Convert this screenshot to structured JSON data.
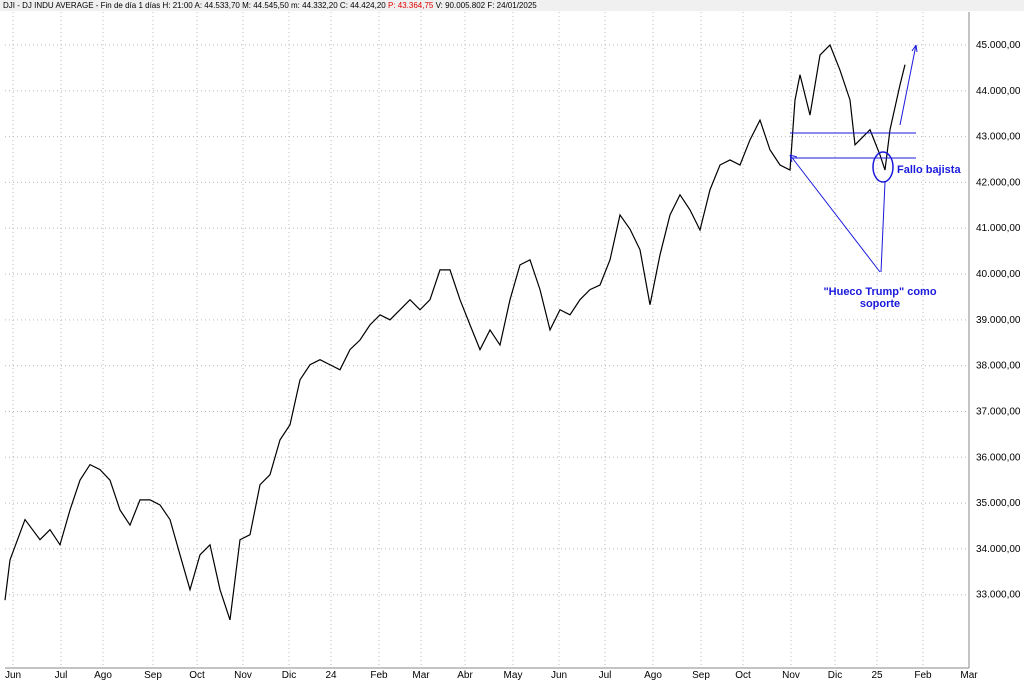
{
  "chart_data": {
    "type": "line",
    "header": {
      "title": "DJI - DJ INDU AVERAGE - Fin de día 1 días",
      "stats": "H: 21:00  A: 44.533,70  M: 44.545,50  m: 44.332,20  C: 44.424,20",
      "previous": "P: 43.364,75",
      "rest": "V: 90.005.802  F: 24/01/2025"
    },
    "x": [
      0,
      2.5,
      10,
      17.5,
      22.5,
      27.5,
      32.5,
      37.5,
      42.5,
      47.5,
      52.5,
      57.5,
      62.5,
      67.5,
      72.5,
      77.5,
      82.5,
      87.5,
      92.5,
      97.5,
      102.5,
      107.5,
      112.5,
      117.5,
      122.5,
      127.5,
      132.5,
      137.5,
      142.5,
      147.5,
      152.5,
      157.5,
      162.5,
      167.5,
      172.5,
      177.5,
      182.5,
      187.5,
      192.5,
      197.5,
      202.5,
      207.5,
      212.5,
      217.5,
      222.5,
      227.5,
      232.5,
      237.5,
      242.5,
      247.5,
      252.5,
      257.5,
      262.5,
      267.5,
      272.5,
      277.5,
      282.5,
      287.5,
      292.5,
      297.5,
      302.5,
      307.5,
      312.5,
      317.5,
      322.5,
      327.5,
      332.5,
      337.5,
      342.5,
      347.5,
      352.5,
      357.5,
      362.5,
      367.5,
      372.5,
      377.5,
      382.5,
      387.5,
      392.5,
      395,
      397.5,
      402.5,
      407.5,
      412.5,
      417.5,
      422.5,
      425,
      427.5,
      432.5,
      437.5,
      440,
      442.5,
      447.5,
      450
    ],
    "series": [
      {
        "name": "DJI",
        "color": "#000000",
        "values": [
          32880,
          33760,
          34640,
          34200,
          34420,
          34090,
          34850,
          35500,
          35840,
          35730,
          35500,
          34850,
          34520,
          35070,
          35070,
          34960,
          34640,
          33870,
          33110,
          33870,
          34090,
          33110,
          32450,
          34200,
          34310,
          35400,
          35620,
          36380,
          36710,
          37690,
          38020,
          38130,
          38020,
          37910,
          38350,
          38560,
          38890,
          39110,
          39000,
          39220,
          39440,
          39220,
          39440,
          40090,
          40090,
          39440,
          38890,
          38350,
          38780,
          38450,
          39440,
          40200,
          40310,
          39660,
          38780,
          39220,
          39110,
          39440,
          39660,
          39760,
          40310,
          41290,
          40980,
          40530,
          39330,
          40420,
          41290,
          41730,
          41400,
          40960,
          41840,
          42380,
          42490,
          42380,
          42930,
          43360,
          42710,
          42380,
          42270,
          43800,
          44350,
          43470,
          44780,
          45000,
          44450,
          43800,
          42820,
          42930,
          43150,
          42600,
          42270,
          43150,
          44130,
          44570
        ]
      }
    ],
    "xlim": [
      0,
      482
    ],
    "xticks": [
      {
        "value": 4,
        "label": "Jun"
      },
      {
        "value": 28,
        "label": "Jul"
      },
      {
        "value": 49,
        "label": "Ago"
      },
      {
        "value": 74,
        "label": "Sep"
      },
      {
        "value": 96,
        "label": "Oct"
      },
      {
        "value": 119,
        "label": "Nov"
      },
      {
        "value": 142,
        "label": "Dic"
      },
      {
        "value": 163,
        "label": "24"
      },
      {
        "value": 187,
        "label": "Feb"
      },
      {
        "value": 208,
        "label": "Mar"
      },
      {
        "value": 230,
        "label": "Abr"
      },
      {
        "value": 254,
        "label": "May"
      },
      {
        "value": 277,
        "label": "Jun"
      },
      {
        "value": 300,
        "label": "Jul"
      },
      {
        "value": 324,
        "label": "Ago"
      },
      {
        "value": 348,
        "label": "Sep"
      },
      {
        "value": 369,
        "label": "Oct"
      },
      {
        "value": 393,
        "label": "Nov"
      },
      {
        "value": 415,
        "label": "Dic"
      },
      {
        "value": 436,
        "label": "25"
      },
      {
        "value": 459,
        "label": "Feb"
      },
      {
        "value": 482,
        "label": "Mar"
      }
    ],
    "ylim": [
      31400,
      45720
    ],
    "yticks": [
      {
        "value": 33000,
        "label": "33.000,00"
      },
      {
        "value": 34000,
        "label": "34.000,00"
      },
      {
        "value": 35000,
        "label": "35.000,00"
      },
      {
        "value": 36000,
        "label": "36.000,00"
      },
      {
        "value": 37000,
        "label": "37.000,00"
      },
      {
        "value": 38000,
        "label": "38.000,00"
      },
      {
        "value": 39000,
        "label": "39.000,00"
      },
      {
        "value": 40000,
        "label": "40.000,00"
      },
      {
        "value": 41000,
        "label": "41.000,00"
      },
      {
        "value": 42000,
        "label": "42.000,00"
      },
      {
        "value": 43000,
        "label": "43.000,00"
      },
      {
        "value": 44000,
        "label": "44.000,00"
      },
      {
        "value": 45000,
        "label": "45.000,00"
      }
    ],
    "grid": true,
    "annotations": [
      "Fallo bajista",
      "\"Hueco Trump\" como",
      "soporte"
    ]
  }
}
